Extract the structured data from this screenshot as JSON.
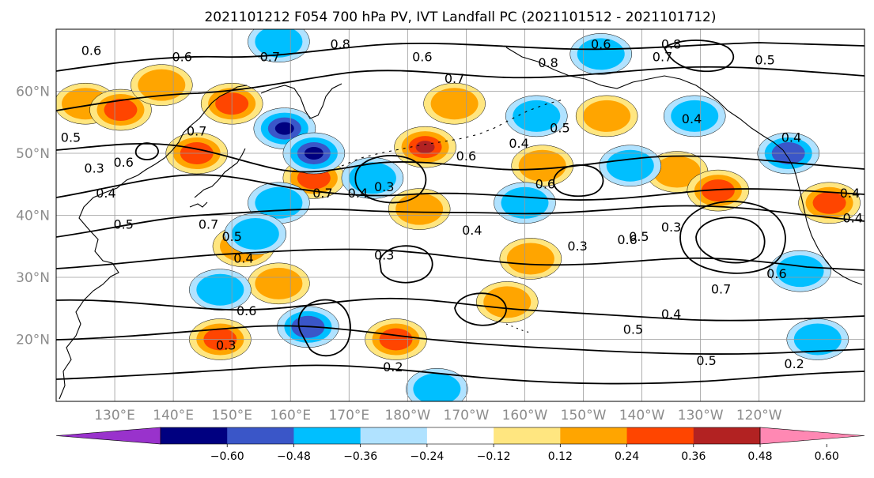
{
  "figure": {
    "title": "2021101212 F054 700 hPa PV, IVT Landfall PC (2021101512 - 2021101712)"
  },
  "map": {
    "lon_range": [
      120,
      258
    ],
    "lat_range": [
      10,
      70
    ],
    "lat_ticks": [
      {
        "value": 20,
        "label": "20°N"
      },
      {
        "value": 30,
        "label": "30°N"
      },
      {
        "value": 40,
        "label": "40°N"
      },
      {
        "value": 50,
        "label": "50°N"
      },
      {
        "value": 60,
        "label": "60°N"
      }
    ],
    "lon_ticks": [
      {
        "value": 130,
        "label": "130°E"
      },
      {
        "value": 140,
        "label": "140°E"
      },
      {
        "value": 150,
        "label": "150°E"
      },
      {
        "value": 160,
        "label": "160°E"
      },
      {
        "value": 170,
        "label": "170°E"
      },
      {
        "value": 180,
        "label": "180°W"
      },
      {
        "value": 190,
        "label": "170°W"
      },
      {
        "value": 200,
        "label": "160°W"
      },
      {
        "value": 210,
        "label": "150°W"
      },
      {
        "value": 220,
        "label": "140°W"
      },
      {
        "value": 230,
        "label": "130°W"
      },
      {
        "value": 240,
        "label": "120°W"
      }
    ],
    "gridlines": true,
    "contour_labels": [
      {
        "text": "0.6",
        "lon": 126,
        "lat": 66.5
      },
      {
        "text": "0.6",
        "lon": 141.5,
        "lat": 65.5
      },
      {
        "text": "0.7",
        "lon": 156.5,
        "lat": 65.5
      },
      {
        "text": "0.8",
        "lon": 168.5,
        "lat": 67.5
      },
      {
        "text": "0.6",
        "lon": 182.5,
        "lat": 65.5
      },
      {
        "text": "0.7",
        "lon": 188,
        "lat": 62
      },
      {
        "text": "0.8",
        "lon": 204,
        "lat": 64.5
      },
      {
        "text": "0.6",
        "lon": 213,
        "lat": 67.5
      },
      {
        "text": "0.8",
        "lon": 225,
        "lat": 67.5
      },
      {
        "text": "0.7",
        "lon": 223.5,
        "lat": 65.5
      },
      {
        "text": "0.5",
        "lon": 241,
        "lat": 65
      },
      {
        "text": "0.4",
        "lon": 228.5,
        "lat": 55.5
      },
      {
        "text": "0.5",
        "lon": 206,
        "lat": 54
      },
      {
        "text": "0.4",
        "lon": 199,
        "lat": 51.5
      },
      {
        "text": "0.4",
        "lon": 245.5,
        "lat": 52.5
      },
      {
        "text": "0.6",
        "lon": 190,
        "lat": 49.5
      },
      {
        "text": "0.6",
        "lon": 203.5,
        "lat": 45
      },
      {
        "text": "0.7",
        "lon": 144,
        "lat": 53.5
      },
      {
        "text": "0.5",
        "lon": 122.5,
        "lat": 52.5
      },
      {
        "text": "0.6",
        "lon": 131.5,
        "lat": 48.5
      },
      {
        "text": "0.3",
        "lon": 126.5,
        "lat": 47.5
      },
      {
        "text": "0.4",
        "lon": 128.5,
        "lat": 43.5
      },
      {
        "text": "0.7",
        "lon": 165.5,
        "lat": 43.5
      },
      {
        "text": "0.4",
        "lon": 171.5,
        "lat": 43.5
      },
      {
        "text": "0.3",
        "lon": 176,
        "lat": 44.5
      },
      {
        "text": "0.5",
        "lon": 131.5,
        "lat": 38.5
      },
      {
        "text": "0.7",
        "lon": 146,
        "lat": 38.5
      },
      {
        "text": "0.5",
        "lon": 150,
        "lat": 36.5
      },
      {
        "text": "0.4",
        "lon": 152,
        "lat": 33
      },
      {
        "text": "0.4",
        "lon": 191,
        "lat": 37.5
      },
      {
        "text": "0.3",
        "lon": 176,
        "lat": 33.5
      },
      {
        "text": "0.3",
        "lon": 209,
        "lat": 35
      },
      {
        "text": "0.6",
        "lon": 217.5,
        "lat": 36
      },
      {
        "text": "0.5",
        "lon": 219.5,
        "lat": 36.5
      },
      {
        "text": "0.3",
        "lon": 225,
        "lat": 38
      },
      {
        "text": "0.4",
        "lon": 255.5,
        "lat": 43.5
      },
      {
        "text": "0.4",
        "lon": 256,
        "lat": 39.5
      },
      {
        "text": "0.6",
        "lon": 243,
        "lat": 30.5
      },
      {
        "text": "0.7",
        "lon": 233.5,
        "lat": 28
      },
      {
        "text": "0.4",
        "lon": 225,
        "lat": 24
      },
      {
        "text": "0.5",
        "lon": 218.5,
        "lat": 21.5
      },
      {
        "text": "0.5",
        "lon": 231,
        "lat": 16.5
      },
      {
        "text": "0.2",
        "lon": 246,
        "lat": 16
      },
      {
        "text": "0.6",
        "lon": 152.5,
        "lat": 24.5
      },
      {
        "text": "0.3",
        "lon": 149,
        "lat": 19
      },
      {
        "text": "0.2",
        "lon": 177.5,
        "lat": 15.5
      }
    ],
    "pv_anomalies": [
      {
        "lon": 125,
        "lat": 58,
        "value": 0.33
      },
      {
        "lon": 131,
        "lat": 57,
        "value": 0.4
      },
      {
        "lon": 138,
        "lat": 61,
        "value": 0.3
      },
      {
        "lon": 150,
        "lat": 58,
        "value": 0.36
      },
      {
        "lon": 144,
        "lat": 50,
        "value": 0.42
      },
      {
        "lon": 164,
        "lat": 46,
        "value": 0.46
      },
      {
        "lon": 183,
        "lat": 51,
        "value": 0.5
      },
      {
        "lon": 182,
        "lat": 41,
        "value": 0.27
      },
      {
        "lon": 188,
        "lat": 58,
        "value": 0.34
      },
      {
        "lon": 197,
        "lat": 26,
        "value": 0.3
      },
      {
        "lon": 201,
        "lat": 33,
        "value": 0.28
      },
      {
        "lon": 203,
        "lat": 48,
        "value": 0.3
      },
      {
        "lon": 214,
        "lat": 56,
        "value": 0.25
      },
      {
        "lon": 226,
        "lat": 47,
        "value": 0.3
      },
      {
        "lon": 233,
        "lat": 44,
        "value": 0.36
      },
      {
        "lon": 252,
        "lat": 42,
        "value": 0.42
      },
      {
        "lon": 152,
        "lat": 35,
        "value": 0.3
      },
      {
        "lon": 148,
        "lat": 20,
        "value": 0.36
      },
      {
        "lon": 178,
        "lat": 20,
        "value": 0.38
      },
      {
        "lon": 158,
        "lat": 29,
        "value": 0.25
      },
      {
        "lon": 159,
        "lat": 54,
        "value": -0.56
      },
      {
        "lon": 164,
        "lat": 50,
        "value": -0.48
      },
      {
        "lon": 158,
        "lat": 42,
        "value": -0.32
      },
      {
        "lon": 174,
        "lat": 46,
        "value": -0.26
      },
      {
        "lon": 200,
        "lat": 42,
        "value": -0.33
      },
      {
        "lon": 202,
        "lat": 56,
        "value": -0.3
      },
      {
        "lon": 218,
        "lat": 48,
        "value": -0.3
      },
      {
        "lon": 229,
        "lat": 56,
        "value": -0.34
      },
      {
        "lon": 245,
        "lat": 50,
        "value": -0.36
      },
      {
        "lon": 158,
        "lat": 68,
        "value": -0.3
      },
      {
        "lon": 213,
        "lat": 66,
        "value": -0.28
      },
      {
        "lon": 148,
        "lat": 28,
        "value": -0.3
      },
      {
        "lon": 163,
        "lat": 22,
        "value": -0.38
      },
      {
        "lon": 154,
        "lat": 37,
        "value": -0.26
      },
      {
        "lon": 185,
        "lat": 12,
        "value": -0.25
      },
      {
        "lon": 247,
        "lat": 31,
        "value": -0.28
      },
      {
        "lon": 250,
        "lat": 20,
        "value": -0.28
      }
    ]
  },
  "colorbar": {
    "ticks": [
      "−0.60",
      "−0.48",
      "−0.36",
      "−0.24",
      "−0.12",
      "0.12",
      "0.24",
      "0.36",
      "0.48",
      "0.60"
    ],
    "colors": [
      "#9932cc",
      "#000080",
      "#3a56c8",
      "#00bfff",
      "#b0e2ff",
      "#ffffff",
      "#ffe680",
      "#ffa500",
      "#ff4500",
      "#b22222",
      "#ff88b3"
    ]
  }
}
